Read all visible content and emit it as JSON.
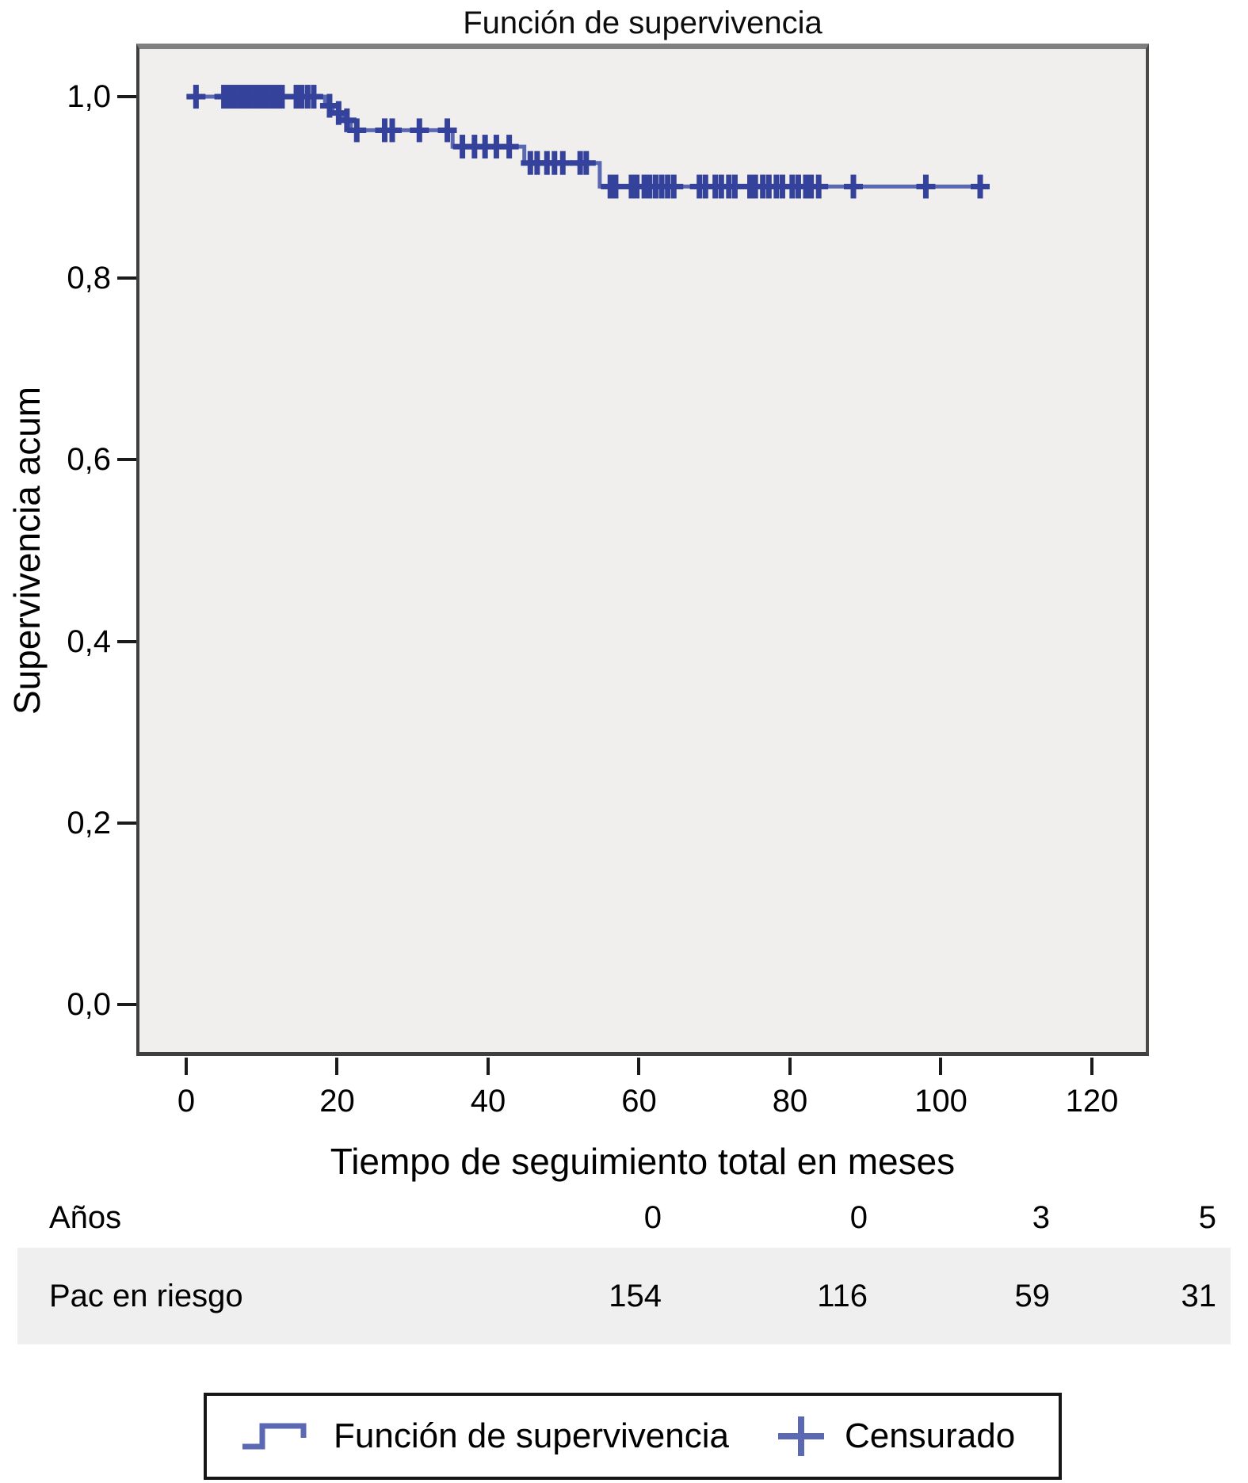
{
  "title": "Función de supervivencia",
  "chart_data": {
    "type": "line",
    "subtype": "kaplan-meier-step",
    "title": "Función de supervivencia",
    "xlabel": "Tiempo de seguimiento total en meses",
    "ylabel": "Supervivencia acum",
    "grid": false,
    "plot_bg": "#f0efed",
    "line_color": "#5b69b3",
    "censor_color": "#35429b",
    "xlim": [
      -6.61,
      127.56
    ],
    "ylim": [
      -0.0567,
      1.0585
    ],
    "xticks": [
      0,
      20,
      40,
      60,
      80,
      100,
      120
    ],
    "yticks": [
      {
        "value": 1.0,
        "label": "1,0"
      },
      {
        "value": 0.8,
        "label": "0,8"
      },
      {
        "value": 0.6,
        "label": "0,6"
      },
      {
        "value": 0.4,
        "label": "0,4"
      },
      {
        "value": 0.2,
        "label": "0,2"
      },
      {
        "value": 0.0,
        "label": "0,0"
      }
    ],
    "series": [
      {
        "name": "Función de supervivencia",
        "steps": [
          [
            0.9,
            1.0
          ],
          [
            18.4,
            0.99
          ],
          [
            19.4,
            0.982
          ],
          [
            20.8,
            0.974
          ],
          [
            21.8,
            0.963
          ],
          [
            35.3,
            0.945
          ],
          [
            44.8,
            0.927
          ],
          [
            54.8,
            0.901
          ]
        ],
        "end_t": 105.5
      }
    ],
    "censors": {
      "name": "Censurado",
      "points": [
        [
          1.3,
          1.0
        ],
        [
          5.0,
          1.0
        ],
        [
          5.7,
          1.0
        ],
        [
          6.4,
          1.0
        ],
        [
          7.1,
          1.0
        ],
        [
          7.8,
          1.0
        ],
        [
          8.5,
          1.0
        ],
        [
          9.2,
          1.0
        ],
        [
          9.9,
          1.0
        ],
        [
          10.6,
          1.0
        ],
        [
          11.3,
          1.0
        ],
        [
          12.0,
          1.0
        ],
        [
          12.7,
          1.0
        ],
        [
          14.6,
          1.0
        ],
        [
          15.3,
          1.0
        ],
        [
          16.1,
          1.0
        ],
        [
          16.9,
          1.0
        ],
        [
          19.0,
          0.99
        ],
        [
          20.2,
          0.982
        ],
        [
          21.3,
          0.974
        ],
        [
          22.6,
          0.963
        ],
        [
          26.3,
          0.963
        ],
        [
          27.3,
          0.963
        ],
        [
          30.9,
          0.963
        ],
        [
          34.6,
          0.963
        ],
        [
          36.6,
          0.945
        ],
        [
          38.2,
          0.945
        ],
        [
          39.6,
          0.945
        ],
        [
          41.1,
          0.945
        ],
        [
          42.8,
          0.945
        ],
        [
          45.6,
          0.927
        ],
        [
          46.5,
          0.927
        ],
        [
          47.8,
          0.927
        ],
        [
          48.8,
          0.927
        ],
        [
          49.9,
          0.927
        ],
        [
          52.2,
          0.927
        ],
        [
          53.0,
          0.927
        ],
        [
          56.2,
          0.901
        ],
        [
          56.9,
          0.901
        ],
        [
          59.0,
          0.901
        ],
        [
          59.7,
          0.901
        ],
        [
          60.7,
          0.901
        ],
        [
          61.4,
          0.901
        ],
        [
          62.2,
          0.901
        ],
        [
          63.0,
          0.901
        ],
        [
          63.8,
          0.901
        ],
        [
          64.6,
          0.901
        ],
        [
          68.0,
          0.901
        ],
        [
          68.8,
          0.901
        ],
        [
          70.1,
          0.901
        ],
        [
          70.9,
          0.901
        ],
        [
          71.9,
          0.901
        ],
        [
          72.7,
          0.901
        ],
        [
          74.7,
          0.901
        ],
        [
          75.4,
          0.901
        ],
        [
          76.4,
          0.901
        ],
        [
          77.2,
          0.901
        ],
        [
          78.2,
          0.901
        ],
        [
          79.0,
          0.901
        ],
        [
          80.3,
          0.901
        ],
        [
          81.1,
          0.901
        ],
        [
          82.1,
          0.901
        ],
        [
          82.8,
          0.901
        ],
        [
          83.8,
          0.901
        ],
        [
          88.4,
          0.901
        ],
        [
          98.0,
          0.901
        ],
        [
          105.2,
          0.901
        ]
      ]
    }
  },
  "risk_table": {
    "rows": [
      {
        "label": "Años",
        "values": [
          "0",
          "0",
          "3",
          "5"
        ]
      },
      {
        "label": "Pac en riesgo",
        "values": [
          "154",
          "116",
          "59",
          "31"
        ]
      }
    ]
  },
  "legend": {
    "items": [
      {
        "icon": "step-line-icon",
        "label": "Función de supervivencia"
      },
      {
        "icon": "plus-icon",
        "label": "Censurado"
      }
    ]
  }
}
